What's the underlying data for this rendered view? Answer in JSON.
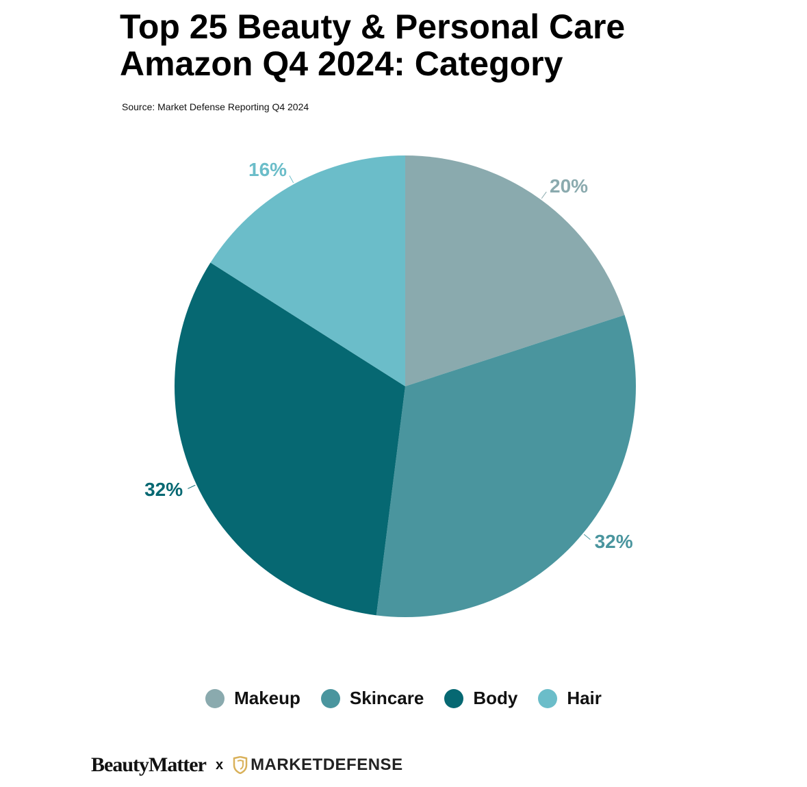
{
  "chart_data": {
    "type": "pie",
    "title": "Top 25 Beauty & Personal Care\nAmazon Q4 2024: Category",
    "subtitle": "Source: Market Defense Reporting Q4 2024",
    "categories": [
      "Makeup",
      "Skincare",
      "Body",
      "Hair"
    ],
    "values": [
      20,
      32,
      32,
      16
    ],
    "value_labels": [
      "20%",
      "32%",
      "32%",
      "16%"
    ],
    "colors": [
      "#8aaaae",
      "#4a959e",
      "#066872",
      "#6bbdc9"
    ],
    "legend": "bottom"
  },
  "footer": {
    "brand": "BeautyMatter",
    "separator": "x",
    "partner": "MARKETDEFENSE"
  }
}
